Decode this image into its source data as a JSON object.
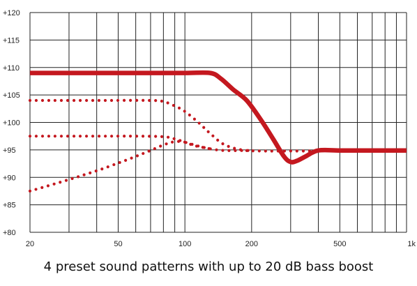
{
  "caption": "4 preset sound patterns with up to 20 dB bass boost",
  "chart_data": {
    "type": "line",
    "x_scale": "log",
    "xlim": [
      20,
      1000
    ],
    "ylim": [
      80,
      120
    ],
    "x_ticks": [
      20,
      50,
      100,
      200,
      500,
      1000
    ],
    "x_tick_labels": [
      "20",
      "50",
      "100",
      "200",
      "500",
      "1k"
    ],
    "y_ticks": [
      80,
      85,
      90,
      95,
      100,
      105,
      110,
      115,
      120
    ],
    "y_tick_labels": [
      "+80",
      "+85",
      "+90",
      "+95",
      "+100",
      "+105",
      "+110",
      "+115",
      "+120"
    ],
    "grid": true,
    "color": "#c4181f",
    "series": [
      {
        "style": "solid",
        "x": [
          20,
          60,
          100,
          130,
          145,
          165,
          190,
          220,
          250,
          280,
          300,
          320,
          350,
          400,
          500,
          700,
          1000
        ],
        "y": [
          109,
          109,
          109,
          109,
          108,
          106,
          104,
          100.5,
          97,
          93.8,
          92.8,
          93,
          93.8,
          94.9,
          94.9,
          94.9,
          94.9
        ]
      },
      {
        "style": "dotted",
        "x": [
          20,
          40,
          70,
          80,
          90,
          100,
          115,
          130,
          150,
          180,
          220,
          300,
          400
        ],
        "y": [
          104,
          104,
          104,
          103.8,
          103,
          102,
          100,
          98,
          96,
          95,
          94.8,
          94.8,
          94.8
        ]
      },
      {
        "style": "dotted",
        "x": [
          20,
          40,
          60,
          80,
          90,
          100,
          115,
          130,
          150,
          200
        ],
        "y": [
          97.5,
          97.5,
          97.5,
          97.4,
          97,
          96.4,
          95.7,
          95.2,
          94.9,
          94.9
        ]
      },
      {
        "style": "dotted",
        "x": [
          20,
          30,
          40,
          50,
          60,
          70,
          80,
          90,
          100,
          110,
          130
        ],
        "y": [
          87.5,
          89.6,
          91.2,
          92.6,
          93.8,
          94.9,
          95.9,
          96.5,
          96.4,
          95.8,
          95.2
        ]
      }
    ]
  }
}
